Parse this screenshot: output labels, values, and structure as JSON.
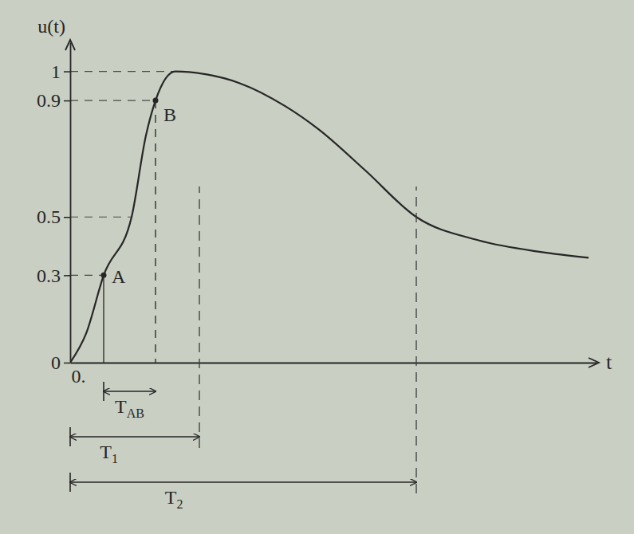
{
  "chart_data": {
    "type": "line",
    "y_label": "u(t)",
    "x_label": "t",
    "x": [
      0,
      0.2,
      0.42,
      0.77,
      0.95,
      1.07,
      1.32,
      1.7,
      2.12,
      2.7,
      3.12,
      3.7,
      4.34,
      5.12,
      5.9,
      6.5
    ],
    "values": [
      0,
      0.1,
      0.3,
      0.5,
      0.78,
      0.9,
      1.0,
      0.99,
      0.96,
      0.88,
      0.8,
      0.66,
      0.5,
      0.42,
      0.38,
      0.36
    ],
    "color": "#262626",
    "line_style": "solid",
    "grid": false,
    "xlim": [
      0,
      6.6
    ],
    "ylim": [
      0,
      1.1
    ],
    "xticks": [
      {
        "value": 0,
        "label": "0."
      }
    ],
    "yticks": [
      0,
      0.3,
      0.5,
      0.9,
      1
    ],
    "annotations": [
      {
        "label": "A",
        "x": 0.42,
        "y": 0.3
      },
      {
        "label": "B",
        "x": 1.07,
        "y": 0.9
      }
    ],
    "intervals": [
      {
        "label": "T",
        "sub": "AB",
        "from": 0.42,
        "to": 1.07
      },
      {
        "label": "T",
        "sub": "1",
        "from": 0,
        "to": 1.62
      },
      {
        "label": "T",
        "sub": "2",
        "from": 0,
        "to": 4.34
      }
    ]
  }
}
